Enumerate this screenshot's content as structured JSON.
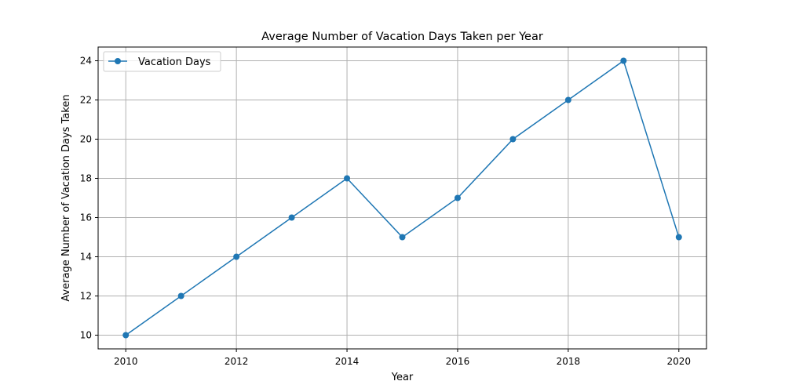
{
  "chart_data": {
    "type": "line",
    "title": "Average Number of Vacation Days Taken per Year",
    "xlabel": "Year",
    "ylabel": "Average Number of Vacation Days Taken",
    "x": [
      2010,
      2011,
      2012,
      2013,
      2014,
      2015,
      2016,
      2017,
      2018,
      2019,
      2020
    ],
    "series": [
      {
        "name": "Vacation Days",
        "values": [
          10,
          12,
          14,
          16,
          18,
          15,
          17,
          20,
          22,
          24,
          15
        ],
        "color": "#1f77b4",
        "marker": "circle"
      }
    ],
    "xticks": [
      "2010",
      "2012",
      "2014",
      "2016",
      "2018",
      "2020"
    ],
    "yticks": [
      "10",
      "12",
      "14",
      "16",
      "18",
      "20",
      "22",
      "24"
    ],
    "xlim": [
      2009.5,
      2020.5
    ],
    "ylim": [
      9.3,
      24.7
    ],
    "grid": true,
    "legend_position": "upper-left"
  }
}
